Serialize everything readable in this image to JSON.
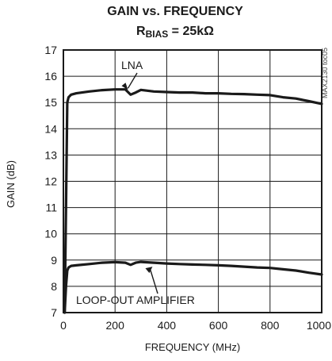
{
  "chart_data": {
    "type": "line",
    "title": "GAIN vs. FREQUENCY",
    "subtitle_main": "R",
    "subtitle_sub": "BIAS",
    "subtitle_rest": " = 25kΩ",
    "xlabel": "FREQUENCY (MHz)",
    "ylabel": "GAIN (dB)",
    "xlim": [
      0,
      1000
    ],
    "ylim": [
      7,
      17
    ],
    "x_ticks": [
      0,
      200,
      400,
      600,
      800,
      1000
    ],
    "y_ticks": [
      7,
      8,
      9,
      10,
      11,
      12,
      13,
      14,
      15,
      16,
      17
    ],
    "grid": true,
    "watermark": "MAX2130 toc05",
    "series": [
      {
        "name": "LNA",
        "x": [
          5,
          10,
          15,
          20,
          30,
          50,
          100,
          150,
          200,
          240,
          260,
          280,
          300,
          350,
          400,
          450,
          500,
          550,
          600,
          650,
          700,
          750,
          800,
          850,
          900,
          950,
          1000
        ],
        "y": [
          7.0,
          11.0,
          15.0,
          15.2,
          15.3,
          15.35,
          15.42,
          15.47,
          15.5,
          15.5,
          15.3,
          15.38,
          15.48,
          15.42,
          15.4,
          15.38,
          15.38,
          15.35,
          15.35,
          15.33,
          15.32,
          15.3,
          15.28,
          15.2,
          15.15,
          15.05,
          14.95
        ]
      },
      {
        "name": "LOOP-OUT AMPLIFIER",
        "x": [
          5,
          10,
          15,
          20,
          30,
          50,
          100,
          150,
          200,
          240,
          260,
          280,
          300,
          350,
          400,
          450,
          500,
          550,
          600,
          650,
          700,
          750,
          800,
          850,
          900,
          950,
          1000
        ],
        "y": [
          7.0,
          8.0,
          8.6,
          8.72,
          8.78,
          8.8,
          8.85,
          8.9,
          8.92,
          8.9,
          8.82,
          8.9,
          8.93,
          8.9,
          8.87,
          8.85,
          8.83,
          8.82,
          8.8,
          8.78,
          8.75,
          8.72,
          8.7,
          8.65,
          8.6,
          8.52,
          8.45
        ]
      }
    ],
    "annotations": [
      {
        "text": "LNA",
        "target": [
          250,
          15.45
        ]
      },
      {
        "text": "LOOP-OUT AMPLIFIER",
        "target": [
          345,
          8.75
        ]
      }
    ]
  }
}
